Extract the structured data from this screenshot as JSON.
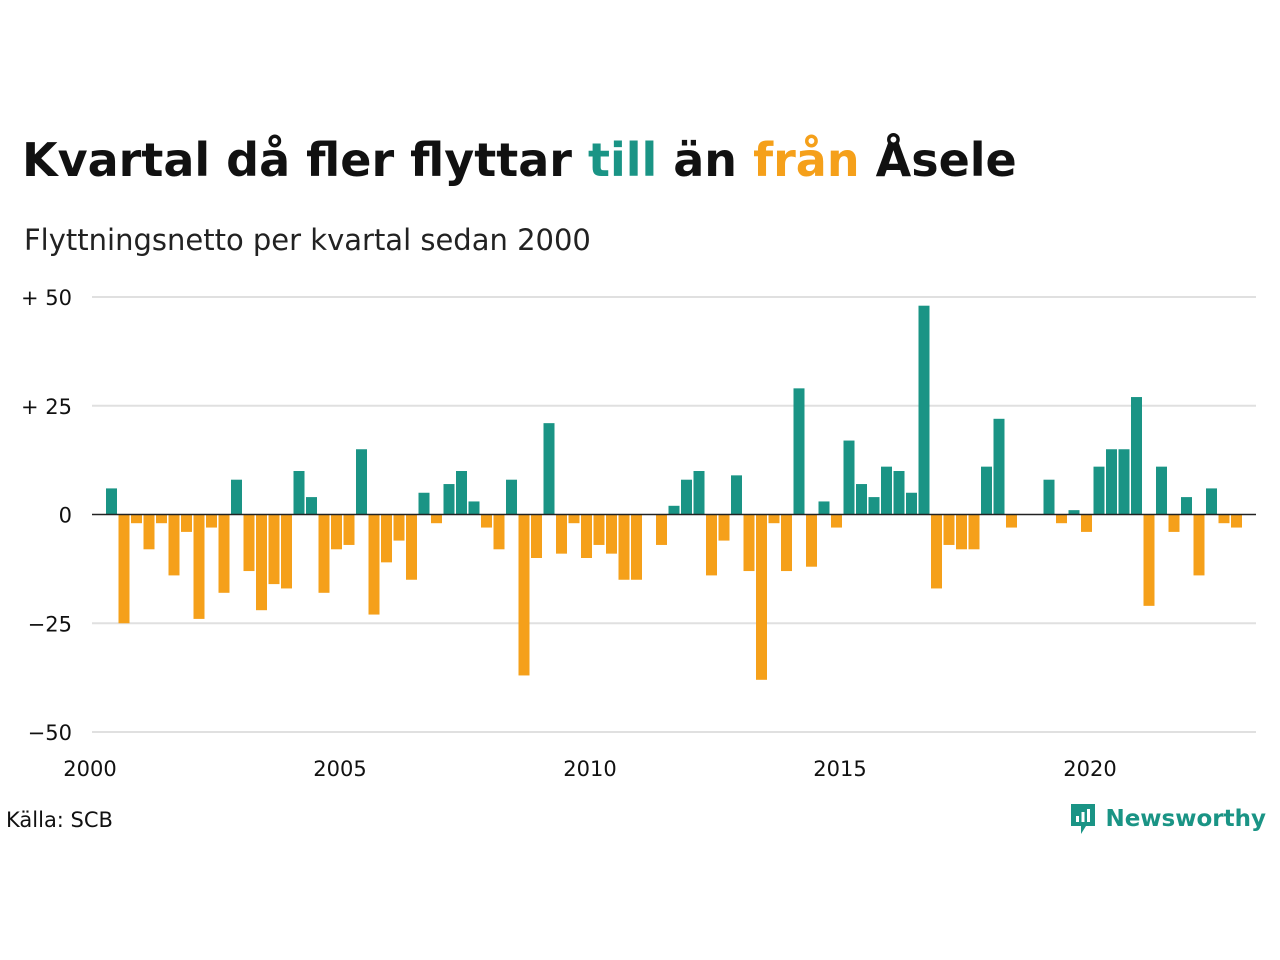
{
  "title": {
    "part1": "Kvartal då fler flyttar ",
    "highlight_to": "till",
    "part2": " än ",
    "highlight_from": "från",
    "part3": " Åsele"
  },
  "subtitle": "Flyttningsnetto per kvartal sedan 2000",
  "source": "Källa: SCB",
  "brand": {
    "name": "Newsworthy",
    "icon": "newsworthy-logo-icon"
  },
  "colors": {
    "positive": "#1a9485",
    "negative": "#f5a01a",
    "grid": "#e0e0e0",
    "zero_line": "#222222"
  },
  "chart_data": {
    "type": "bar",
    "title": "Kvartal då fler flyttar till än från Åsele",
    "subtitle": "Flyttningsnetto per kvartal sedan 2000",
    "x_unit": "quarter",
    "x_start": "2000 Q2",
    "xticks": [
      "2000",
      "2005",
      "2010",
      "2015",
      "2020"
    ],
    "yticks": [
      {
        "value": 50,
        "label": "+ 50"
      },
      {
        "value": 25,
        "label": "+ 25"
      },
      {
        "value": 0,
        "label": "0"
      },
      {
        "value": -25,
        "label": "−25"
      },
      {
        "value": -50,
        "label": "−50"
      }
    ],
    "ylim": [
      -50,
      50
    ],
    "xlim": [
      "2000",
      "2023 Q3"
    ],
    "grid": true,
    "values": [
      6,
      -25,
      -2,
      -8,
      -2,
      -14,
      -4,
      -24,
      -3,
      -18,
      8,
      -13,
      -22,
      -16,
      -17,
      10,
      4,
      -18,
      -8,
      -7,
      15,
      -23,
      -11,
      -6,
      -15,
      5,
      -2,
      7,
      10,
      3,
      -3,
      -8,
      8,
      -37,
      -10,
      21,
      -9,
      -2,
      -10,
      -7,
      -9,
      -15,
      -15,
      0,
      -7,
      2,
      8,
      10,
      -14,
      -6,
      9,
      -13,
      -38,
      -2,
      -13,
      29,
      -12,
      3,
      -3,
      17,
      7,
      4,
      11,
      10,
      5,
      48,
      -17,
      -7,
      -8,
      -8,
      11,
      22,
      -3,
      0,
      0,
      8,
      -2,
      1,
      -4,
      11,
      15,
      15,
      27,
      -21,
      11,
      -4,
      4,
      -14,
      6,
      -2,
      -3
    ]
  }
}
